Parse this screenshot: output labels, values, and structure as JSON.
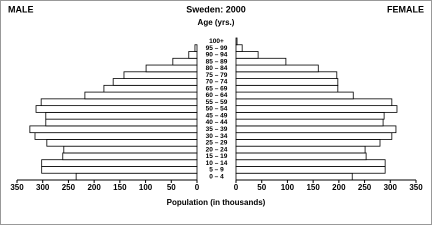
{
  "chart_data": {
    "type": "pyramid",
    "title": "Sweden: 2000",
    "subtitle": "Age (yrs.)",
    "x_label": "Population (in thousands)",
    "categories": [
      "0 – 4",
      "5 – 9",
      "10 – 14",
      "15 – 19",
      "20 – 24",
      "25 – 29",
      "30 – 34",
      "35 – 39",
      "40 – 44",
      "45 – 49",
      "50 – 54",
      "55 – 59",
      "60 – 64",
      "65 – 69",
      "70 – 74",
      "75 – 79",
      "80 – 84",
      "85 – 89",
      "90 – 94",
      "95 – 99",
      "100+"
    ],
    "series": [
      {
        "name": "MALE",
        "color": "#ffffff",
        "values": [
          235,
          302,
          302,
          261,
          259,
          292,
          315,
          325,
          294,
          294,
          313,
          303,
          218,
          181,
          163,
          142,
          99,
          47,
          16,
          4,
          0
        ]
      },
      {
        "name": "FEMALE",
        "color": "#ffffff",
        "values": [
          226,
          290,
          290,
          253,
          251,
          280,
          303,
          311,
          286,
          288,
          313,
          303,
          228,
          198,
          198,
          196,
          160,
          97,
          43,
          12,
          2
        ]
      }
    ],
    "xlim": [
      0,
      350
    ],
    "xticks": [
      0,
      50,
      100,
      150,
      200,
      250,
      300,
      350
    ]
  }
}
